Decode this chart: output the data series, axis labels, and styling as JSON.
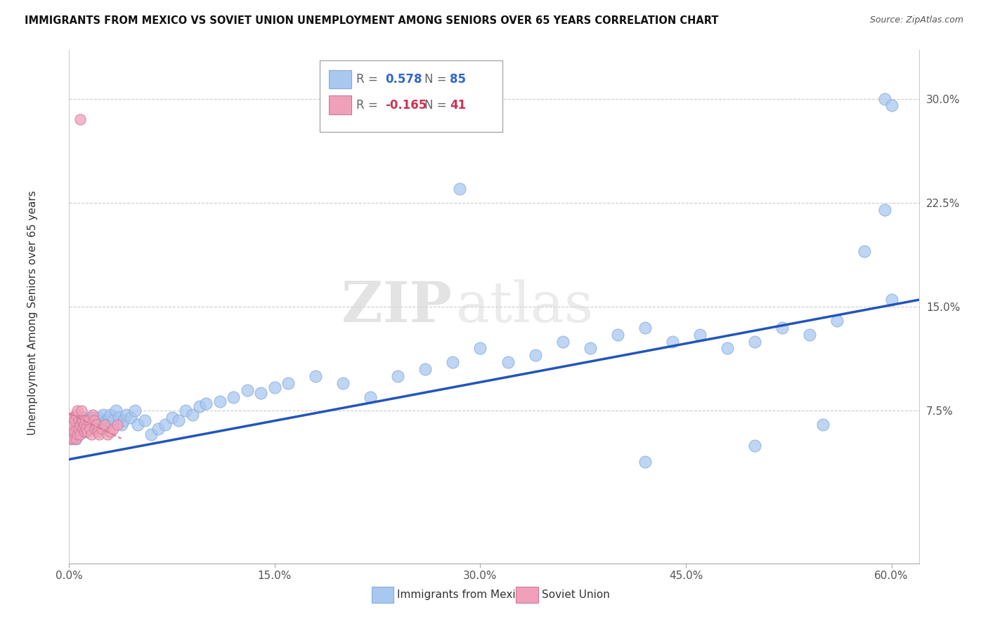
{
  "title": "IMMIGRANTS FROM MEXICO VS SOVIET UNION UNEMPLOYMENT AMONG SENIORS OVER 65 YEARS CORRELATION CHART",
  "source": "Source: ZipAtlas.com",
  "ylabel": "Unemployment Among Seniors over 65 years",
  "xlim": [
    0.0,
    0.62
  ],
  "ylim": [
    -0.035,
    0.335
  ],
  "legend1_r": "0.578",
  "legend1_n": "85",
  "legend2_r": "-0.165",
  "legend2_n": "41",
  "legend1_label": "Immigrants from Mexico",
  "legend2_label": "Soviet Union",
  "mexico_color": "#a8c8f0",
  "soviet_color": "#f0a0b8",
  "regression_blue": "#2255bb",
  "regression_pink": "#dd7799",
  "watermark_zip": "ZIP",
  "watermark_atlas": "atlas",
  "mexico_x": [
    0.002,
    0.003,
    0.004,
    0.005,
    0.006,
    0.007,
    0.008,
    0.009,
    0.01,
    0.01,
    0.011,
    0.012,
    0.013,
    0.014,
    0.015,
    0.015,
    0.016,
    0.017,
    0.018,
    0.019,
    0.02,
    0.021,
    0.022,
    0.023,
    0.024,
    0.025,
    0.026,
    0.027,
    0.028,
    0.029,
    0.03,
    0.032,
    0.034,
    0.036,
    0.038,
    0.04,
    0.042,
    0.045,
    0.048,
    0.05,
    0.055,
    0.06,
    0.065,
    0.07,
    0.075,
    0.08,
    0.085,
    0.09,
    0.095,
    0.1,
    0.11,
    0.12,
    0.13,
    0.14,
    0.15,
    0.16,
    0.18,
    0.2,
    0.22,
    0.24,
    0.26,
    0.28,
    0.3,
    0.32,
    0.34,
    0.36,
    0.38,
    0.4,
    0.42,
    0.44,
    0.46,
    0.48,
    0.5,
    0.52,
    0.54,
    0.56,
    0.58,
    0.595,
    0.595,
    0.6,
    0.6,
    0.285,
    0.5,
    0.55,
    0.42
  ],
  "mexico_y": [
    0.055,
    0.06,
    0.065,
    0.055,
    0.06,
    0.07,
    0.065,
    0.06,
    0.065,
    0.07,
    0.065,
    0.06,
    0.068,
    0.063,
    0.07,
    0.065,
    0.063,
    0.068,
    0.07,
    0.066,
    0.065,
    0.068,
    0.07,
    0.065,
    0.068,
    0.072,
    0.067,
    0.065,
    0.068,
    0.07,
    0.072,
    0.068,
    0.075,
    0.07,
    0.065,
    0.068,
    0.072,
    0.07,
    0.075,
    0.065,
    0.068,
    0.058,
    0.062,
    0.065,
    0.07,
    0.068,
    0.075,
    0.072,
    0.078,
    0.08,
    0.082,
    0.085,
    0.09,
    0.088,
    0.092,
    0.095,
    0.1,
    0.095,
    0.085,
    0.1,
    0.105,
    0.11,
    0.12,
    0.11,
    0.115,
    0.125,
    0.12,
    0.13,
    0.135,
    0.125,
    0.13,
    0.12,
    0.125,
    0.135,
    0.13,
    0.14,
    0.19,
    0.22,
    0.3,
    0.295,
    0.155,
    0.235,
    0.05,
    0.065,
    0.038
  ],
  "soviet_x": [
    0.001,
    0.001,
    0.002,
    0.002,
    0.003,
    0.003,
    0.004,
    0.004,
    0.005,
    0.005,
    0.006,
    0.006,
    0.007,
    0.007,
    0.008,
    0.008,
    0.009,
    0.009,
    0.01,
    0.01,
    0.011,
    0.011,
    0.012,
    0.012,
    0.013,
    0.014,
    0.015,
    0.016,
    0.017,
    0.018,
    0.019,
    0.02,
    0.021,
    0.022,
    0.024,
    0.026,
    0.028,
    0.03,
    0.032,
    0.035,
    0.008
  ],
  "soviet_y": [
    0.055,
    0.06,
    0.065,
    0.07,
    0.055,
    0.07,
    0.06,
    0.068,
    0.055,
    0.072,
    0.058,
    0.075,
    0.062,
    0.068,
    0.058,
    0.065,
    0.068,
    0.075,
    0.062,
    0.068,
    0.06,
    0.065,
    0.068,
    0.062,
    0.06,
    0.068,
    0.062,
    0.058,
    0.072,
    0.068,
    0.062,
    0.065,
    0.06,
    0.058,
    0.062,
    0.065,
    0.058,
    0.06,
    0.062,
    0.065,
    0.285
  ],
  "blue_line_x": [
    0.0,
    0.62
  ],
  "blue_line_y": [
    0.04,
    0.155
  ],
  "pink_line_x": [
    0.0,
    0.038
  ],
  "pink_line_y": [
    0.073,
    0.055
  ]
}
